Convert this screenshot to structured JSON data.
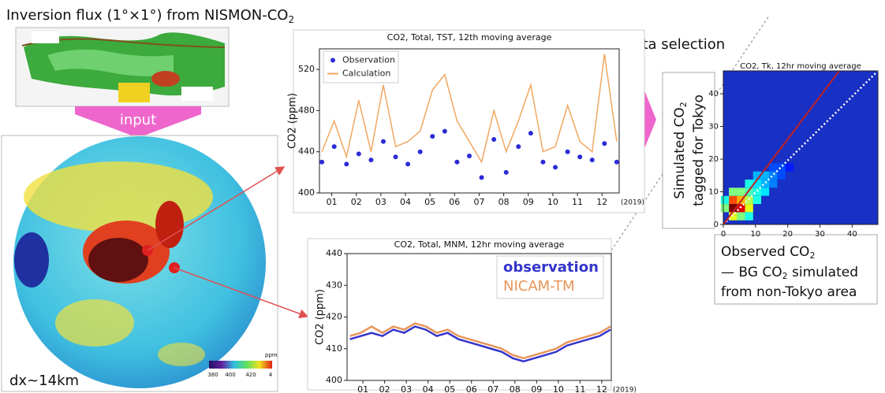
{
  "texts": {
    "title": {
      "main": "Inversion flux (1°×1°) from NISMON-CO",
      "sub": "2"
    },
    "input": "input",
    "resolution": "dx~14km",
    "colorbar": {
      "unit": "ppm",
      "ticks": [
        "380",
        "400",
        "420",
        "4"
      ]
    },
    "data_selection": "data selection",
    "heat_ylabel": {
      "line1_main": "Simulated CO",
      "line1_sub": "2",
      "line2": "tagged for Tokyo"
    },
    "heat_xlabel": {
      "line1_main": "Observed CO",
      "line1_sub": "2",
      "line2_main": "— BG CO",
      "line2_sub": "2",
      "line2_rest": " simulated",
      "line3": "from non-Tokyo area"
    }
  },
  "chart_data": [
    {
      "type": "line",
      "title": "CO2, Total, TST, 12th moving average",
      "y_label": "CO2 (ppm)",
      "x_note": "(2019)",
      "xlim": [
        0.5,
        12.7
      ],
      "ylim": [
        400,
        540
      ],
      "yticks": [
        400,
        440,
        480,
        520
      ],
      "xticks": [
        {
          "value": 1,
          "label": "01"
        },
        {
          "value": 2,
          "label": "02"
        },
        {
          "value": 3,
          "label": "03"
        },
        {
          "value": 4,
          "label": "04"
        },
        {
          "value": 5,
          "label": "05"
        },
        {
          "value": 6,
          "label": "06"
        },
        {
          "value": 7,
          "label": "07"
        },
        {
          "value": 8,
          "label": "08"
        },
        {
          "value": 9,
          "label": "09"
        },
        {
          "value": 10,
          "label": "10"
        },
        {
          "value": 11,
          "label": "11"
        },
        {
          "value": 12,
          "label": "12"
        }
      ],
      "legend": "upper left",
      "x": [
        0.6,
        1.1,
        1.6,
        2.1,
        2.6,
        3.1,
        3.6,
        4.1,
        4.6,
        5.1,
        5.6,
        6.1,
        6.6,
        7.1,
        7.6,
        8.1,
        8.6,
        9.1,
        9.6,
        10.1,
        10.6,
        11.1,
        11.6,
        12.1,
        12.6
      ],
      "series": [
        {
          "name": "Observation",
          "color": "#2b2bd6",
          "style": "markers",
          "values": [
            430,
            445,
            428,
            438,
            432,
            450,
            435,
            428,
            440,
            455,
            460,
            430,
            436,
            415,
            452,
            420,
            445,
            458,
            430,
            425,
            440,
            435,
            432,
            448,
            430
          ]
        },
        {
          "name": "Calculation",
          "color": "#f0a860",
          "style": "line",
          "values": [
            440,
            470,
            435,
            490,
            440,
            505,
            445,
            450,
            460,
            500,
            515,
            470,
            450,
            430,
            480,
            440,
            470,
            505,
            440,
            445,
            485,
            450,
            440,
            535,
            450
          ]
        }
      ]
    },
    {
      "type": "line",
      "title": "CO2, Total, MNM, 12hr moving average",
      "y_label": "CO2 (ppm)",
      "x_note": "(2019)",
      "xlim": [
        0.27,
        12.44
      ],
      "ylim": [
        400,
        440
      ],
      "yticks": [
        400,
        410,
        420,
        430,
        440
      ],
      "xticks": [
        {
          "value": 1,
          "label": "01"
        },
        {
          "value": 2,
          "label": "02"
        },
        {
          "value": 3,
          "label": "03"
        },
        {
          "value": 4,
          "label": "04"
        },
        {
          "value": 5,
          "label": "05"
        },
        {
          "value": 6,
          "label": "06"
        },
        {
          "value": 7,
          "label": "07"
        },
        {
          "value": 8,
          "label": "08"
        },
        {
          "value": 9,
          "label": "09"
        },
        {
          "value": 10,
          "label": "10"
        },
        {
          "value": 11,
          "label": "11"
        },
        {
          "value": 12,
          "label": "12"
        }
      ],
      "legend": "upper right",
      "x": [
        0.4,
        0.9,
        1.4,
        1.9,
        2.4,
        2.9,
        3.4,
        3.9,
        4.4,
        4.9,
        5.4,
        5.9,
        6.4,
        6.9,
        7.4,
        7.9,
        8.4,
        8.9,
        9.4,
        9.9,
        10.4,
        10.9,
        11.4,
        11.9,
        12.4
      ],
      "series": [
        {
          "name": "observation",
          "color": "#3434cc",
          "style": "line",
          "values": [
            413,
            414,
            415,
            414,
            416,
            415,
            417,
            416,
            414,
            415,
            413,
            412,
            411,
            410,
            409,
            407,
            406,
            407,
            408,
            409,
            411,
            412,
            413,
            414,
            416
          ]
        },
        {
          "name": "NICAM-TM",
          "color": "#e8955a",
          "style": "line",
          "values": [
            414,
            415,
            417,
            415,
            417,
            416,
            418,
            417,
            415,
            416,
            414,
            413,
            412,
            411,
            410,
            408,
            407,
            408,
            409,
            410,
            412,
            413,
            414,
            415,
            417
          ]
        }
      ]
    },
    {
      "type": "heatmap",
      "title": "CO2, Tk, 12hr moving average",
      "xlim": [
        0,
        48
      ],
      "ylim": [
        0,
        47
      ],
      "xticks": [
        0,
        10,
        20,
        30,
        40
      ],
      "yticks": [
        0,
        10,
        20,
        30,
        40
      ],
      "cells": {
        "x": [
          3,
          5.5,
          3,
          5.5,
          8,
          8,
          3,
          5.5,
          8,
          10.5,
          10.5,
          10.5,
          13,
          8,
          13,
          13,
          15.5,
          10.5,
          15.5,
          18,
          15.5,
          18,
          20.5,
          3,
          5.5,
          8,
          0.5,
          0.5
        ],
        "y": [
          5,
          5,
          7.5,
          7.5,
          5,
          7.5,
          10,
          10,
          10,
          7.5,
          10,
          12.5,
          10,
          12.5,
          12.5,
          15,
          12.5,
          15,
          15,
          17.5,
          17.5,
          15,
          17.5,
          2.5,
          2.5,
          2.5,
          5,
          7.5
        ],
        "values": [
          1.0,
          0.9,
          0.8,
          0.7,
          0.6,
          0.55,
          0.5,
          0.5,
          0.45,
          0.4,
          0.4,
          0.35,
          0.35,
          0.4,
          0.3,
          0.3,
          0.25,
          0.3,
          0.25,
          0.2,
          0.2,
          0.2,
          0.15,
          0.6,
          0.5,
          0.4,
          0.5,
          0.4
        ]
      }
    }
  ]
}
